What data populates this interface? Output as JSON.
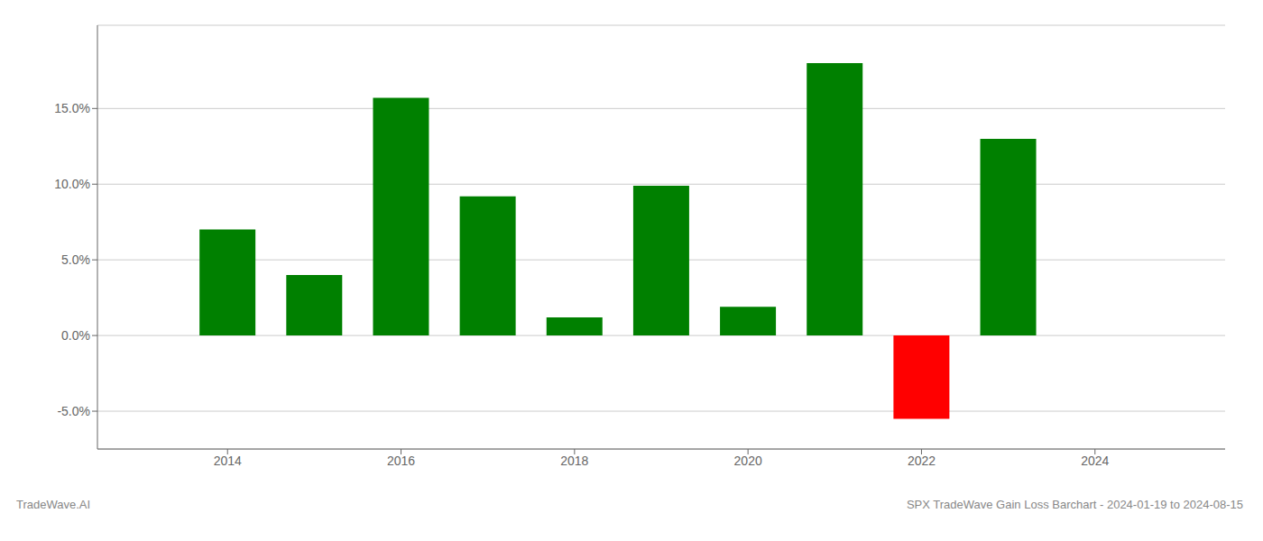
{
  "chart_data": {
    "type": "bar",
    "x": [
      2014,
      2015,
      2016,
      2017,
      2018,
      2019,
      2020,
      2021,
      2022,
      2023
    ],
    "values": [
      0.07,
      0.04,
      0.157,
      0.092,
      0.012,
      0.099,
      0.019,
      0.18,
      -0.055,
      0.13
    ],
    "colors": [
      "#008000",
      "#008000",
      "#008000",
      "#008000",
      "#008000",
      "#008000",
      "#008000",
      "#008000",
      "#ff0000",
      "#008000"
    ],
    "xlim": [
      2012.5,
      2025.5
    ],
    "xticks": [
      2014,
      2016,
      2018,
      2020,
      2022,
      2024
    ],
    "ylim": [
      -0.075,
      0.205
    ],
    "yticks": [
      {
        "value": -0.05,
        "label": "-5.0%"
      },
      {
        "value": 0.0,
        "label": "0.0%"
      },
      {
        "value": 0.05,
        "label": "5.0%"
      },
      {
        "value": 0.1,
        "label": "10.0%"
      },
      {
        "value": 0.15,
        "label": "15.0%"
      }
    ],
    "grid": true,
    "annotations": [
      "TradeWave.AI",
      "SPX TradeWave Gain Loss Barchart - 2024-01-19 to 2024-08-15"
    ]
  }
}
